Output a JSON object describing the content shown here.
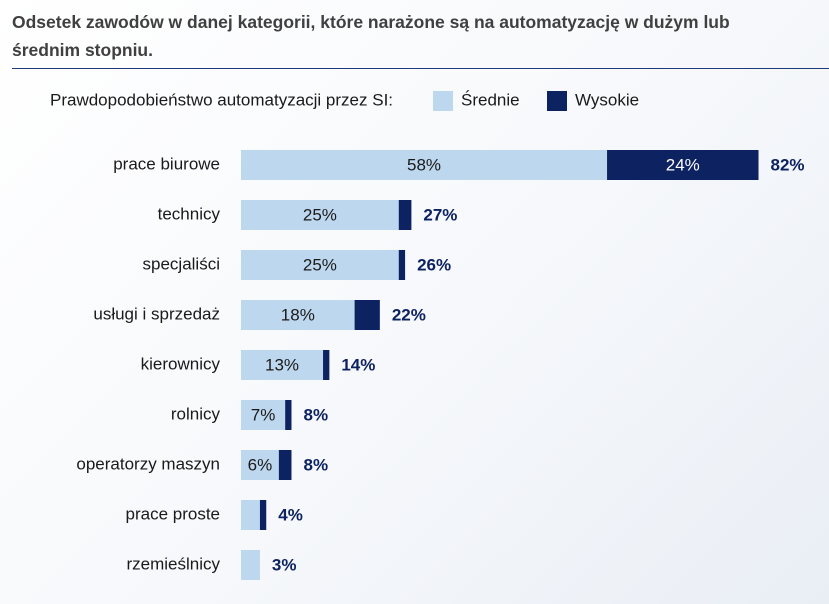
{
  "chart_data": {
    "type": "stacked-barh",
    "title": "Odsetek zawodów w danej kategorii, które narażone są na automatyzację w dużym lub średnim stopniu.",
    "legend_title": "Prawdopodobieństwo automatyzacji przez SI:",
    "categories": [
      "prace biurowe",
      "technicy",
      "specjaliści",
      "usługi i sprzedaż",
      "kierownicy",
      "rolnicy",
      "operatorzy maszyn",
      "prace proste",
      "rzemieślnicy"
    ],
    "series": [
      {
        "name": "Średnie",
        "color": "#bdd7ee",
        "values": [
          58,
          25,
          25,
          18,
          13,
          7,
          6,
          3,
          3
        ],
        "value_labels": [
          "58%",
          "25%",
          "25%",
          "18%",
          "13%",
          "7%",
          "6%",
          null,
          null
        ]
      },
      {
        "name": "Wysokie",
        "color": "#0d2260",
        "values": [
          24,
          2,
          1,
          4,
          1,
          1,
          2,
          1,
          0
        ],
        "value_labels": [
          "24%",
          null,
          null,
          null,
          null,
          null,
          null,
          null,
          null
        ]
      }
    ],
    "total_labels": [
      "82%",
      "27%",
      "26%",
      "22%",
      "14%",
      "8%",
      "8%",
      "4%",
      "3%"
    ],
    "xlim": [
      0,
      90
    ]
  }
}
